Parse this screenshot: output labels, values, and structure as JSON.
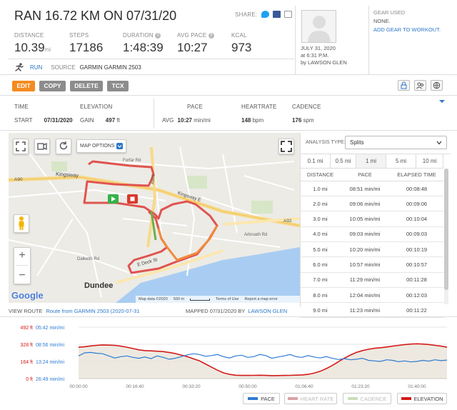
{
  "header": {
    "title": "RAN 16.72 KM ON 07/31/20",
    "share_label": "SHARE:",
    "stats": [
      {
        "label": "DISTANCE",
        "value": "10.39",
        "unit": "mi"
      },
      {
        "label": "STEPS",
        "value": "17186",
        "unit": ""
      },
      {
        "label": "DURATION",
        "value": "1:48:39",
        "unit": ""
      },
      {
        "label": "AVG PACE",
        "value": "10:27",
        "unit": ""
      },
      {
        "label": "KCAL",
        "value": "973",
        "unit": ""
      }
    ],
    "activity_type": "RUN",
    "source_label": "SOURCE",
    "source_value": "GARMIN GARMIN 2503",
    "date_line": "JULY 31, 2020",
    "time_line": "at 6:31 P.M.",
    "by_line": "by LAWSON GLEN",
    "gear_label": "GEAR USED",
    "gear_value": "NONE.",
    "gear_link": "ADD GEAR TO WORKOUT."
  },
  "toolbar": {
    "edit": "EDIT",
    "copy": "COPY",
    "delete": "DELETE",
    "tcx": "TCX"
  },
  "summary": {
    "time_head": "TIME",
    "elevation_head": "ELEVATION",
    "pace_head": "PACE",
    "heartrate_head": "HEARTRATE",
    "cadence_head": "CADENCE",
    "start_label": "START",
    "start_value": "07/31/2020",
    "gain_label": "GAIN",
    "gain_value": "497",
    "gain_unit": "ft",
    "avg_label": "AVG",
    "pace_value": "10:27",
    "pace_unit": "min/mi",
    "hr_value": "148",
    "hr_unit": "bpm",
    "cad_value": "176",
    "cad_unit": "spm"
  },
  "map": {
    "options_label": "MAP OPTIONS",
    "city_label": "Dundee",
    "roads": [
      "Kingsway",
      "A90",
      "A92",
      "A929",
      "Arbroath Rd",
      "Dalkeith Rd",
      "Forfar Rd",
      "E Dock St",
      "Kingsway E"
    ],
    "attribution": "Map data ©2020",
    "scale": "500 m",
    "terms": "Terms of Use",
    "report": "Report a map error",
    "zoom_in": "+",
    "zoom_out": "−",
    "google": "Google"
  },
  "splits": {
    "analysis_label": "ANALYSIS TYPE:",
    "analysis_value": "Splits",
    "tabs": [
      "0.1 mi",
      "0.5 mi",
      "1 mi",
      "5 mi",
      "10 mi"
    ],
    "col_distance": "DISTANCE",
    "col_pace": "PACE",
    "col_elapsed": "ELAPSED TIME",
    "rows": [
      {
        "distance": "1.0 mi",
        "pace": "08:51 min/mi",
        "elapsed": "00:08:48"
      },
      {
        "distance": "2.0 mi",
        "pace": "09:06 min/mi",
        "elapsed": "00:09:06"
      },
      {
        "distance": "3.0 mi",
        "pace": "10:05 min/mi",
        "elapsed": "00:10:04"
      },
      {
        "distance": "4.0 mi",
        "pace": "09:03 min/mi",
        "elapsed": "00:09:03"
      },
      {
        "distance": "5.0 mi",
        "pace": "10:20 min/mi",
        "elapsed": "00:10:19"
      },
      {
        "distance": "6.0 mi",
        "pace": "10:57 min/mi",
        "elapsed": "00:10:57"
      },
      {
        "distance": "7.0 mi",
        "pace": "11:29 min/mi",
        "elapsed": "00:11:28"
      },
      {
        "distance": "8.0 mi",
        "pace": "12:04 min/mi",
        "elapsed": "00:12:03"
      },
      {
        "distance": "9.0 mi",
        "pace": "11:23 min/mi",
        "elapsed": "00:11:22"
      }
    ]
  },
  "route": {
    "view_label": "VIEW ROUTE",
    "route_link": "Route from GARMIN 2503 (2020-07-31",
    "mapped_label": "MAPPED 07/31/2020 BY",
    "mapped_user": "LAWSON GLEN"
  },
  "chart_data": {
    "type": "line",
    "y_left_labels": [
      "492 ft",
      "328 ft",
      "164 ft",
      "0 ft"
    ],
    "y_right_labels": [
      "05:42 min/mi",
      "08:56 min/mi",
      "13:24 min/mi",
      "26:49 min/mi"
    ],
    "x_labels": [
      "00:00:00",
      "00:16:40",
      "00:33:20",
      "00:50:00",
      "01:06:40",
      "01:23:20",
      "01:40:00"
    ],
    "legend": [
      {
        "name": "PACE",
        "color": "#2f7bd3",
        "active": true
      },
      {
        "name": "HEART RATE",
        "color": "#a83232",
        "active": false
      },
      {
        "name": "CADENCE",
        "color": "#8db46a",
        "active": false
      },
      {
        "name": "ELEVATION",
        "color": "#d41a1a",
        "active": true
      }
    ],
    "elevation_ft": [
      300,
      305,
      312,
      318,
      322,
      320,
      318,
      310,
      300,
      288,
      275,
      268,
      265,
      262,
      258,
      250,
      240,
      225,
      210,
      190,
      170,
      140,
      110,
      80,
      55,
      40,
      32,
      30,
      30,
      31,
      32,
      30,
      28,
      29,
      30,
      31,
      33,
      35,
      40,
      52,
      70,
      95,
      125,
      160,
      195,
      225,
      250,
      268,
      280,
      290,
      295,
      302,
      310,
      318,
      325,
      330,
      333,
      330,
      326,
      318,
      310,
      300
    ],
    "pace_min_mi": [
      10.2,
      9.4,
      9.3,
      9.5,
      9.6,
      10.2,
      10.8,
      10.4,
      10.2,
      10.6,
      10.9,
      10.5,
      11.0,
      10.2,
      10.6,
      11.2,
      10.9,
      10.4,
      9.9,
      9.6,
      9.8,
      10.3,
      10.1,
      9.8,
      10.4,
      10.8,
      10.2,
      10.0,
      10.6,
      10.4,
      9.8,
      10.1,
      10.9,
      10.5,
      10.2,
      9.8,
      10.4,
      10.6,
      10.1,
      10.5,
      10.8,
      10.4,
      10.9,
      11.3,
      11.0,
      11.4,
      11.2,
      10.9,
      11.6,
      11.8,
      12.0,
      11.4,
      11.6,
      12.1,
      11.8,
      12.2,
      12.0,
      11.6,
      11.9,
      11.4,
      11.7,
      11.5
    ]
  }
}
